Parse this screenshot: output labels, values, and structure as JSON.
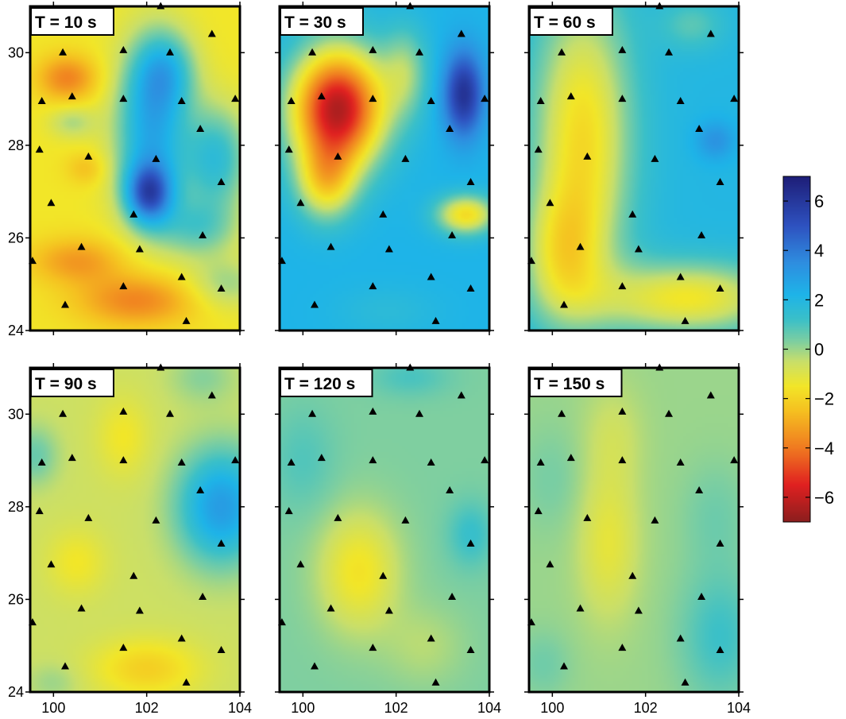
{
  "chart_data": {
    "type": "heatmap",
    "description_fields": "gridded anomaly maps; values estimated from colours",
    "xlim": [
      99.5,
      104
    ],
    "ylim": [
      24,
      31
    ],
    "x_ticks": [
      100,
      102,
      104
    ],
    "y_ticks": [
      24,
      26,
      28,
      30
    ],
    "colorbar": {
      "range": [
        -7,
        7
      ],
      "ticks": [
        6,
        4,
        2,
        0,
        -2,
        -4,
        -6
      ],
      "tick_labels": [
        "6",
        "4",
        "2",
        "0",
        "−2",
        "−4",
        "−6"
      ],
      "colormap": [
        {
          "v": -7,
          "c": "#8b1e1e"
        },
        {
          "v": -5.5,
          "c": "#e02020"
        },
        {
          "v": -4,
          "c": "#f07a20"
        },
        {
          "v": -2.5,
          "c": "#f5c020"
        },
        {
          "v": -1.5,
          "c": "#f2e628"
        },
        {
          "v": -0.5,
          "c": "#c9df6a"
        },
        {
          "v": 0.3,
          "c": "#7fcfa0"
        },
        {
          "v": 1.2,
          "c": "#3bc0c8"
        },
        {
          "v": 2.2,
          "c": "#1eb4e8"
        },
        {
          "v": 3.5,
          "c": "#2e8ee0"
        },
        {
          "v": 5,
          "c": "#2e52c0"
        },
        {
          "v": 7,
          "c": "#1e1e78"
        }
      ]
    },
    "stations": [
      [
        99.55,
        25.5
      ],
      [
        99.75,
        28.95
      ],
      [
        99.7,
        27.9
      ],
      [
        99.95,
        26.75
      ],
      [
        100.2,
        30.0
      ],
      [
        100.25,
        24.55
      ],
      [
        100.4,
        29.05
      ],
      [
        100.6,
        25.8
      ],
      [
        100.75,
        27.75
      ],
      [
        101.5,
        30.05
      ],
      [
        101.5,
        29.0
      ],
      [
        101.5,
        24.95
      ],
      [
        101.72,
        26.5
      ],
      [
        101.85,
        25.75
      ],
      [
        102.2,
        27.7
      ],
      [
        102.3,
        31.0
      ],
      [
        102.5,
        30.0
      ],
      [
        102.75,
        28.95
      ],
      [
        102.75,
        25.15
      ],
      [
        102.85,
        24.2
      ],
      [
        103.15,
        28.35
      ],
      [
        103.2,
        26.05
      ],
      [
        103.4,
        30.4
      ],
      [
        103.6,
        27.2
      ],
      [
        103.6,
        24.9
      ],
      [
        103.9,
        29.0
      ]
    ],
    "panels": [
      {
        "title": "T = 10 s",
        "background": -1.5,
        "anomalies": [
          {
            "x": 102.05,
            "y": 26.95,
            "sx": 0.35,
            "sy": 0.45,
            "a": 5.0
          },
          {
            "x": 102.1,
            "y": 28.3,
            "sx": 0.55,
            "sy": 1.3,
            "a": 4.0
          },
          {
            "x": 102.4,
            "y": 29.6,
            "sx": 0.45,
            "sy": 0.6,
            "a": 2.5
          },
          {
            "x": 103.5,
            "y": 27.7,
            "sx": 0.5,
            "sy": 0.8,
            "a": 3.0
          },
          {
            "x": 103.1,
            "y": 26.2,
            "sx": 0.6,
            "sy": 0.45,
            "a": 2.0
          },
          {
            "x": 100.3,
            "y": 29.45,
            "sx": 0.45,
            "sy": 0.35,
            "a": -2.3
          },
          {
            "x": 101.8,
            "y": 24.65,
            "sx": 0.9,
            "sy": 0.4,
            "a": -2.3
          },
          {
            "x": 100.5,
            "y": 25.5,
            "sx": 0.7,
            "sy": 0.35,
            "a": -1.8
          },
          {
            "x": 100.7,
            "y": 27.5,
            "sx": 0.3,
            "sy": 0.25,
            "a": -1.0
          },
          {
            "x": 103.7,
            "y": 25.0,
            "sx": 0.6,
            "sy": 0.4,
            "a": 1.5
          },
          {
            "x": 100.4,
            "y": 28.5,
            "sx": 0.35,
            "sy": 0.25,
            "a": 1.3
          }
        ]
      },
      {
        "title": "T = 30 s",
        "background": 2.2,
        "anomalies": [
          {
            "x": 100.75,
            "y": 28.8,
            "sx": 0.7,
            "sy": 0.9,
            "a": -8.5
          },
          {
            "x": 100.5,
            "y": 27.2,
            "sx": 0.45,
            "sy": 0.6,
            "a": -3.5
          },
          {
            "x": 103.45,
            "y": 29.1,
            "sx": 0.3,
            "sy": 0.65,
            "a": 4.0
          },
          {
            "x": 103.5,
            "y": 26.5,
            "sx": 0.45,
            "sy": 0.3,
            "a": -4.0
          },
          {
            "x": 102.2,
            "y": 29.6,
            "sx": 0.35,
            "sy": 0.7,
            "a": -2.0
          },
          {
            "x": 100.3,
            "y": 31.0,
            "sx": 0.5,
            "sy": 0.3,
            "a": -1.5
          },
          {
            "x": 101.8,
            "y": 24.4,
            "sx": 0.8,
            "sy": 0.4,
            "a": -0.5
          }
        ]
      },
      {
        "title": "T = 60 s",
        "background": 2.0,
        "anomalies": [
          {
            "x": 100.65,
            "y": 28.2,
            "sx": 0.75,
            "sy": 2.2,
            "a": -3.8
          },
          {
            "x": 102.9,
            "y": 24.7,
            "sx": 1.4,
            "sy": 0.55,
            "a": -3.5
          },
          {
            "x": 100.2,
            "y": 25.6,
            "sx": 0.6,
            "sy": 1.0,
            "a": -2.5
          },
          {
            "x": 103.5,
            "y": 28.1,
            "sx": 0.3,
            "sy": 0.3,
            "a": 1.3
          },
          {
            "x": 103.0,
            "y": 30.6,
            "sx": 0.5,
            "sy": 0.4,
            "a": -1.2
          }
        ]
      },
      {
        "title": "T = 90 s",
        "background": -0.6,
        "anomalies": [
          {
            "x": 103.6,
            "y": 28.0,
            "sx": 0.65,
            "sy": 0.85,
            "a": 3.6
          },
          {
            "x": 102.0,
            "y": 24.5,
            "sx": 0.8,
            "sy": 0.45,
            "a": -1.5
          },
          {
            "x": 100.5,
            "y": 26.8,
            "sx": 0.45,
            "sy": 0.5,
            "a": -0.9
          },
          {
            "x": 101.5,
            "y": 29.5,
            "sx": 0.4,
            "sy": 0.6,
            "a": -0.9
          },
          {
            "x": 99.6,
            "y": 29.1,
            "sx": 0.35,
            "sy": 0.45,
            "a": 1.2
          },
          {
            "x": 103.2,
            "y": 30.8,
            "sx": 0.5,
            "sy": 0.4,
            "a": 0.8
          },
          {
            "x": 100.0,
            "y": 24.2,
            "sx": 0.4,
            "sy": 0.3,
            "a": 0.6
          }
        ]
      },
      {
        "title": "T = 120 s",
        "background": 0.3,
        "anomalies": [
          {
            "x": 101.2,
            "y": 26.6,
            "sx": 0.6,
            "sy": 0.9,
            "a": -1.9
          },
          {
            "x": 103.6,
            "y": 27.4,
            "sx": 0.35,
            "sy": 0.5,
            "a": 1.0
          },
          {
            "x": 100.0,
            "y": 29.0,
            "sx": 0.5,
            "sy": 0.8,
            "a": 0.6
          },
          {
            "x": 102.3,
            "y": 30.8,
            "sx": 0.6,
            "sy": 0.3,
            "a": 0.7
          },
          {
            "x": 102.6,
            "y": 25.0,
            "sx": 0.6,
            "sy": 0.6,
            "a": -0.6
          }
        ]
      },
      {
        "title": "T = 150 s",
        "background": 0.0,
        "anomalies": [
          {
            "x": 101.2,
            "y": 27.2,
            "sx": 0.45,
            "sy": 1.1,
            "a": -1.2
          },
          {
            "x": 101.3,
            "y": 29.5,
            "sx": 0.45,
            "sy": 0.8,
            "a": -0.6
          },
          {
            "x": 103.6,
            "y": 25.2,
            "sx": 0.6,
            "sy": 1.0,
            "a": 1.2
          },
          {
            "x": 103.5,
            "y": 27.8,
            "sx": 0.5,
            "sy": 0.8,
            "a": 0.5
          },
          {
            "x": 100.0,
            "y": 28.6,
            "sx": 0.5,
            "sy": 0.8,
            "a": 0.4
          },
          {
            "x": 99.8,
            "y": 24.6,
            "sx": 0.4,
            "sy": 0.5,
            "a": 0.5
          }
        ]
      }
    ]
  }
}
